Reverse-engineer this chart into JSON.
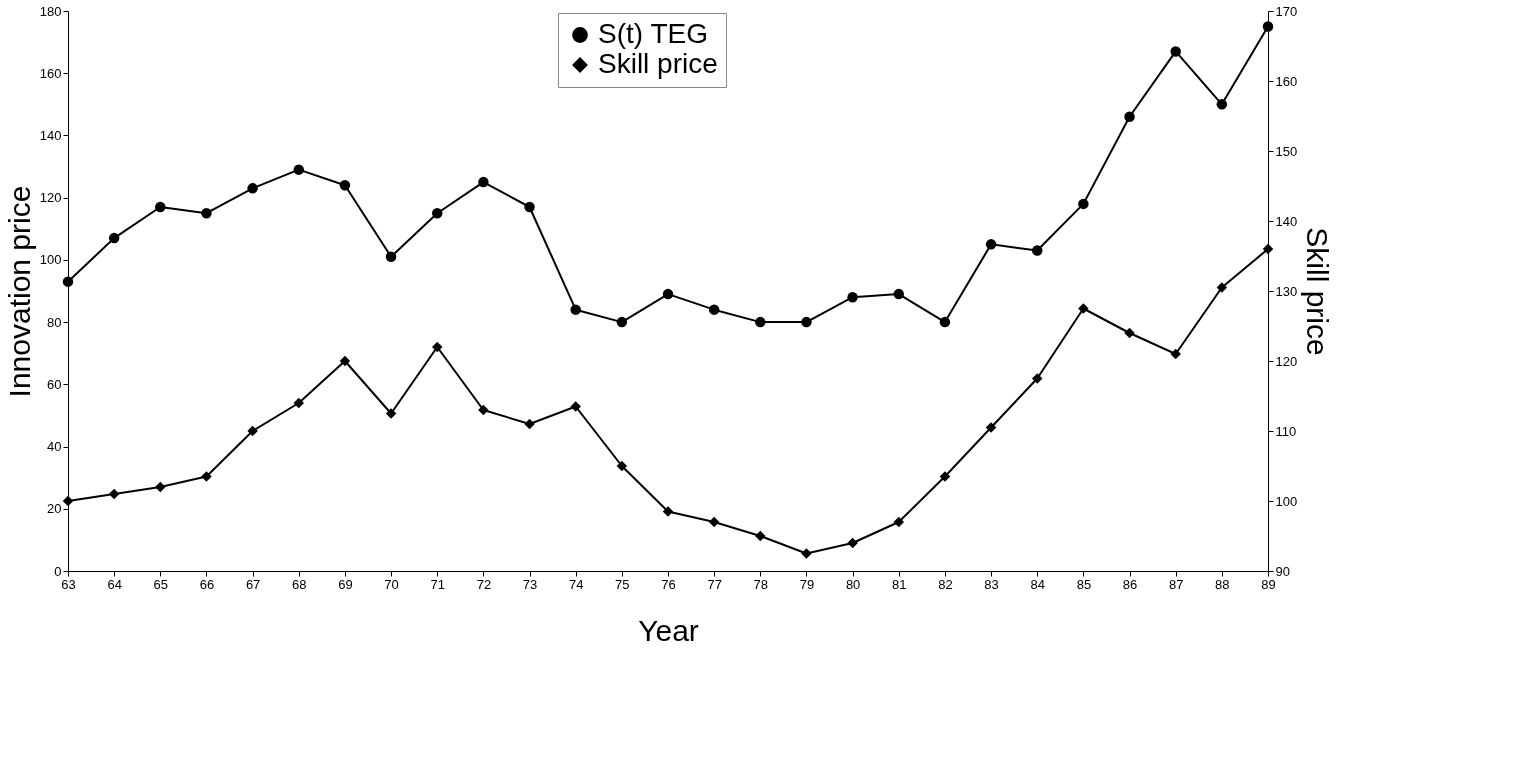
{
  "chart_data": {
    "type": "line",
    "xlabel": "Year",
    "ylabel": "Innovation price",
    "y2label": "Skill price",
    "categories": [
      "63",
      "64",
      "65",
      "66",
      "67",
      "68",
      "69",
      "70",
      "71",
      "72",
      "73",
      "74",
      "75",
      "76",
      "77",
      "78",
      "79",
      "80",
      "81",
      "82",
      "83",
      "84",
      "85",
      "86",
      "87",
      "88",
      "89"
    ],
    "series": [
      {
        "name": "S(t) TEG",
        "color": "#000000",
        "marker": "circle",
        "values": [
          93,
          107,
          117,
          115,
          123,
          129,
          124,
          101,
          115,
          125,
          117,
          84,
          80,
          89,
          84,
          80,
          80,
          88,
          89,
          80,
          105,
          103,
          118,
          146,
          167,
          150,
          175
        ]
      },
      {
        "name": "Skill price",
        "color": "#000000",
        "marker": "diamond",
        "axis": "y2",
        "values": [
          100,
          101,
          102,
          103.5,
          110,
          114,
          120,
          112.5,
          122,
          113,
          111,
          113.5,
          105,
          98.5,
          97,
          95,
          92.5,
          94,
          97,
          103.5,
          110.5,
          117.5,
          127.5,
          124,
          121,
          130.5,
          136
        ]
      }
    ],
    "ylim": [
      0,
      180
    ],
    "yticks": [
      0,
      20,
      40,
      60,
      80,
      100,
      120,
      140,
      160,
      180
    ],
    "y2lim": [
      90,
      170
    ],
    "y2ticks": [
      90,
      100,
      110,
      120,
      130,
      140,
      150,
      160,
      170
    ],
    "legend": "top",
    "grid": false,
    "line_style": "solid"
  }
}
